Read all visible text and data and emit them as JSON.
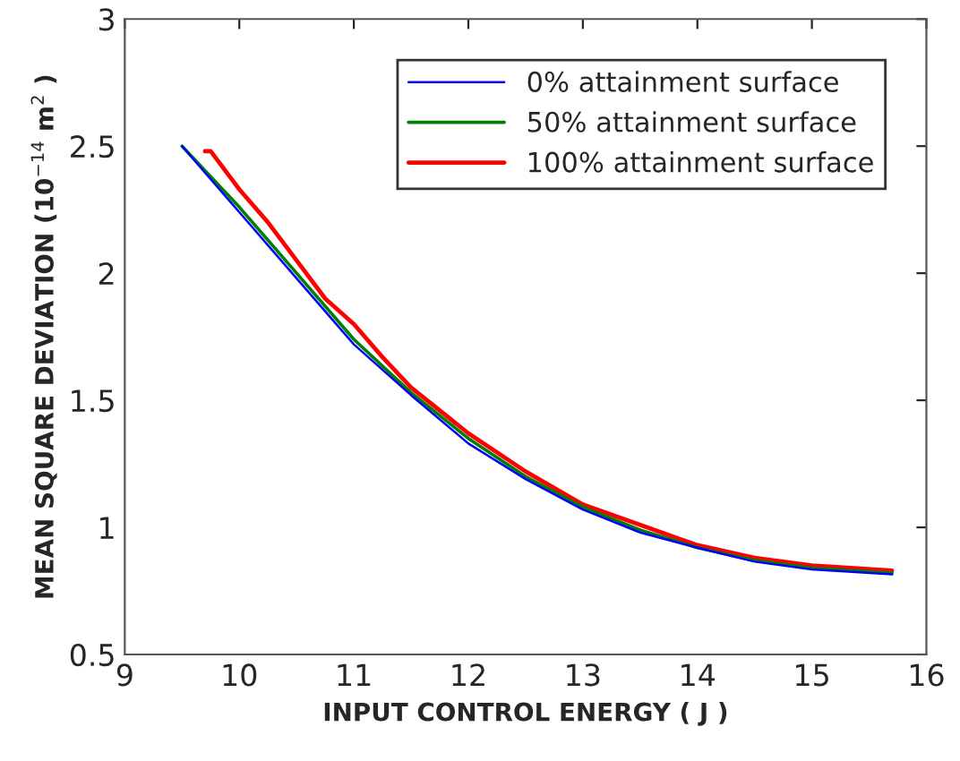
{
  "chart_data": {
    "type": "line",
    "xlabel": "INPUT CONTROL ENERGY ( J )",
    "ylabel": "MEAN SQUARE DEVIATION (10$^{−14}$ m$^{2}$ )",
    "xlim": [
      9,
      16
    ],
    "ylim": [
      0.5,
      3
    ],
    "xticks": [
      9,
      10,
      11,
      12,
      13,
      14,
      15,
      16
    ],
    "yticks": [
      0.5,
      1,
      1.5,
      2,
      2.5,
      3
    ],
    "grid": false,
    "legend": "top right",
    "line_style": "solid",
    "marker": "none",
    "series": [
      {
        "name": "0% attainment surface",
        "color": "#0000ff",
        "x": [
          9.5,
          10,
          10.5,
          11,
          11.5,
          12,
          12.5,
          13,
          13.5,
          14,
          14.5,
          15,
          15.7
        ],
        "values": [
          2.5,
          2.24,
          1.98,
          1.72,
          1.52,
          1.33,
          1.19,
          1.07,
          0.98,
          0.92,
          0.865,
          0.835,
          0.815
        ]
      },
      {
        "name": "50% attainment surface",
        "color": "#008000",
        "x": [
          9.5,
          10,
          10.5,
          11,
          11.5,
          12,
          12.5,
          13,
          13.5,
          14,
          14.5,
          15,
          15.7
        ],
        "values": [
          2.5,
          2.26,
          2.0,
          1.74,
          1.53,
          1.35,
          1.2,
          1.08,
          0.99,
          0.92,
          0.87,
          0.84,
          0.82
        ]
      },
      {
        "name": "100% attainment surface",
        "color": "#ff0000",
        "x": [
          9.7,
          9.75,
          10,
          10.25,
          10.5,
          10.75,
          11,
          11.25,
          11.5,
          12,
          12.5,
          13,
          13.5,
          14,
          14.5,
          15,
          15.7
        ],
        "values": [
          2.48,
          2.48,
          2.33,
          2.2,
          2.05,
          1.9,
          1.8,
          1.67,
          1.55,
          1.37,
          1.22,
          1.09,
          1.01,
          0.93,
          0.88,
          0.85,
          0.83
        ]
      }
    ]
  }
}
